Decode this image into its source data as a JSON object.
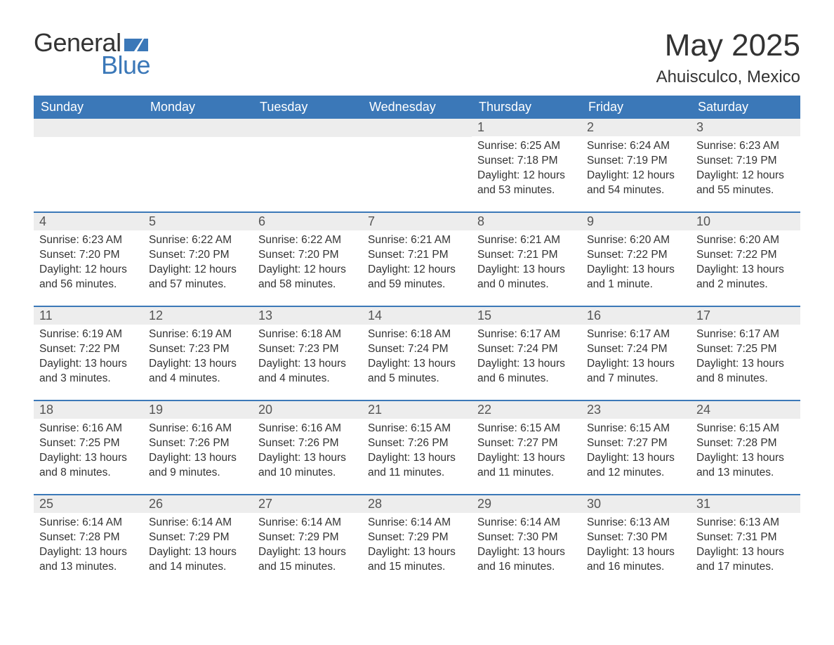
{
  "logo": {
    "text1": "General",
    "text2": "Blue",
    "flag_color": "#3b78b8"
  },
  "title": "May 2025",
  "location": "Ahuisculco, Mexico",
  "colors": {
    "header_bg": "#3b78b8",
    "header_text": "#ffffff",
    "daynum_bg": "#ededed",
    "row_border": "#3b78b8",
    "body_text": "#333333"
  },
  "weekdays": [
    "Sunday",
    "Monday",
    "Tuesday",
    "Wednesday",
    "Thursday",
    "Friday",
    "Saturday"
  ],
  "weeks": [
    [
      {
        "n": "",
        "sunrise": "",
        "sunset": "",
        "daylight": ""
      },
      {
        "n": "",
        "sunrise": "",
        "sunset": "",
        "daylight": ""
      },
      {
        "n": "",
        "sunrise": "",
        "sunset": "",
        "daylight": ""
      },
      {
        "n": "",
        "sunrise": "",
        "sunset": "",
        "daylight": ""
      },
      {
        "n": "1",
        "sunrise": "Sunrise: 6:25 AM",
        "sunset": "Sunset: 7:18 PM",
        "daylight": "Daylight: 12 hours and 53 minutes."
      },
      {
        "n": "2",
        "sunrise": "Sunrise: 6:24 AM",
        "sunset": "Sunset: 7:19 PM",
        "daylight": "Daylight: 12 hours and 54 minutes."
      },
      {
        "n": "3",
        "sunrise": "Sunrise: 6:23 AM",
        "sunset": "Sunset: 7:19 PM",
        "daylight": "Daylight: 12 hours and 55 minutes."
      }
    ],
    [
      {
        "n": "4",
        "sunrise": "Sunrise: 6:23 AM",
        "sunset": "Sunset: 7:20 PM",
        "daylight": "Daylight: 12 hours and 56 minutes."
      },
      {
        "n": "5",
        "sunrise": "Sunrise: 6:22 AM",
        "sunset": "Sunset: 7:20 PM",
        "daylight": "Daylight: 12 hours and 57 minutes."
      },
      {
        "n": "6",
        "sunrise": "Sunrise: 6:22 AM",
        "sunset": "Sunset: 7:20 PM",
        "daylight": "Daylight: 12 hours and 58 minutes."
      },
      {
        "n": "7",
        "sunrise": "Sunrise: 6:21 AM",
        "sunset": "Sunset: 7:21 PM",
        "daylight": "Daylight: 12 hours and 59 minutes."
      },
      {
        "n": "8",
        "sunrise": "Sunrise: 6:21 AM",
        "sunset": "Sunset: 7:21 PM",
        "daylight": "Daylight: 13 hours and 0 minutes."
      },
      {
        "n": "9",
        "sunrise": "Sunrise: 6:20 AM",
        "sunset": "Sunset: 7:22 PM",
        "daylight": "Daylight: 13 hours and 1 minute."
      },
      {
        "n": "10",
        "sunrise": "Sunrise: 6:20 AM",
        "sunset": "Sunset: 7:22 PM",
        "daylight": "Daylight: 13 hours and 2 minutes."
      }
    ],
    [
      {
        "n": "11",
        "sunrise": "Sunrise: 6:19 AM",
        "sunset": "Sunset: 7:22 PM",
        "daylight": "Daylight: 13 hours and 3 minutes."
      },
      {
        "n": "12",
        "sunrise": "Sunrise: 6:19 AM",
        "sunset": "Sunset: 7:23 PM",
        "daylight": "Daylight: 13 hours and 4 minutes."
      },
      {
        "n": "13",
        "sunrise": "Sunrise: 6:18 AM",
        "sunset": "Sunset: 7:23 PM",
        "daylight": "Daylight: 13 hours and 4 minutes."
      },
      {
        "n": "14",
        "sunrise": "Sunrise: 6:18 AM",
        "sunset": "Sunset: 7:24 PM",
        "daylight": "Daylight: 13 hours and 5 minutes."
      },
      {
        "n": "15",
        "sunrise": "Sunrise: 6:17 AM",
        "sunset": "Sunset: 7:24 PM",
        "daylight": "Daylight: 13 hours and 6 minutes."
      },
      {
        "n": "16",
        "sunrise": "Sunrise: 6:17 AM",
        "sunset": "Sunset: 7:24 PM",
        "daylight": "Daylight: 13 hours and 7 minutes."
      },
      {
        "n": "17",
        "sunrise": "Sunrise: 6:17 AM",
        "sunset": "Sunset: 7:25 PM",
        "daylight": "Daylight: 13 hours and 8 minutes."
      }
    ],
    [
      {
        "n": "18",
        "sunrise": "Sunrise: 6:16 AM",
        "sunset": "Sunset: 7:25 PM",
        "daylight": "Daylight: 13 hours and 8 minutes."
      },
      {
        "n": "19",
        "sunrise": "Sunrise: 6:16 AM",
        "sunset": "Sunset: 7:26 PM",
        "daylight": "Daylight: 13 hours and 9 minutes."
      },
      {
        "n": "20",
        "sunrise": "Sunrise: 6:16 AM",
        "sunset": "Sunset: 7:26 PM",
        "daylight": "Daylight: 13 hours and 10 minutes."
      },
      {
        "n": "21",
        "sunrise": "Sunrise: 6:15 AM",
        "sunset": "Sunset: 7:26 PM",
        "daylight": "Daylight: 13 hours and 11 minutes."
      },
      {
        "n": "22",
        "sunrise": "Sunrise: 6:15 AM",
        "sunset": "Sunset: 7:27 PM",
        "daylight": "Daylight: 13 hours and 11 minutes."
      },
      {
        "n": "23",
        "sunrise": "Sunrise: 6:15 AM",
        "sunset": "Sunset: 7:27 PM",
        "daylight": "Daylight: 13 hours and 12 minutes."
      },
      {
        "n": "24",
        "sunrise": "Sunrise: 6:15 AM",
        "sunset": "Sunset: 7:28 PM",
        "daylight": "Daylight: 13 hours and 13 minutes."
      }
    ],
    [
      {
        "n": "25",
        "sunrise": "Sunrise: 6:14 AM",
        "sunset": "Sunset: 7:28 PM",
        "daylight": "Daylight: 13 hours and 13 minutes."
      },
      {
        "n": "26",
        "sunrise": "Sunrise: 6:14 AM",
        "sunset": "Sunset: 7:29 PM",
        "daylight": "Daylight: 13 hours and 14 minutes."
      },
      {
        "n": "27",
        "sunrise": "Sunrise: 6:14 AM",
        "sunset": "Sunset: 7:29 PM",
        "daylight": "Daylight: 13 hours and 15 minutes."
      },
      {
        "n": "28",
        "sunrise": "Sunrise: 6:14 AM",
        "sunset": "Sunset: 7:29 PM",
        "daylight": "Daylight: 13 hours and 15 minutes."
      },
      {
        "n": "29",
        "sunrise": "Sunrise: 6:14 AM",
        "sunset": "Sunset: 7:30 PM",
        "daylight": "Daylight: 13 hours and 16 minutes."
      },
      {
        "n": "30",
        "sunrise": "Sunrise: 6:13 AM",
        "sunset": "Sunset: 7:30 PM",
        "daylight": "Daylight: 13 hours and 16 minutes."
      },
      {
        "n": "31",
        "sunrise": "Sunrise: 6:13 AM",
        "sunset": "Sunset: 7:31 PM",
        "daylight": "Daylight: 13 hours and 17 minutes."
      }
    ]
  ]
}
